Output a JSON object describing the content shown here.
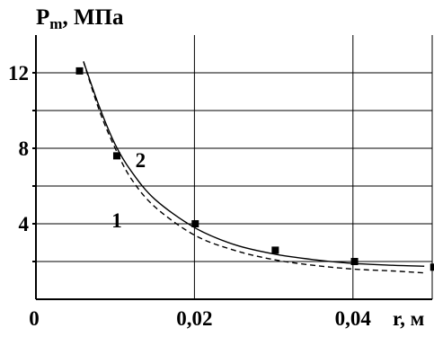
{
  "chart_data": {
    "type": "line",
    "title": "",
    "ylabel": {
      "main": "P",
      "sub": "m",
      "unit": ", МПа"
    },
    "xlabel": "r, м",
    "xlim": [
      0,
      0.05
    ],
    "ylim": [
      0,
      14
    ],
    "x_ticks": [
      {
        "value": 0,
        "label": "0"
      },
      {
        "value": 0.02,
        "label": "0,02"
      },
      {
        "value": 0.04,
        "label": "0,04"
      }
    ],
    "x_gridlines": [
      0.02,
      0.04
    ],
    "y_ticks": [
      {
        "value": 4,
        "label": "4"
      },
      {
        "value": 8,
        "label": "8"
      },
      {
        "value": 12,
        "label": "12"
      }
    ],
    "y_gridlines": [
      2,
      4,
      6,
      8,
      10,
      12
    ],
    "grid": true,
    "series": [
      {
        "name": "1",
        "style": "dashed",
        "color": "#000000",
        "x": [
          0.006,
          0.008,
          0.01,
          0.012,
          0.015,
          0.02,
          0.025,
          0.03,
          0.035,
          0.04,
          0.045,
          0.049
        ],
        "y": [
          12.6,
          10.0,
          8.0,
          6.4,
          4.9,
          3.4,
          2.6,
          2.1,
          1.8,
          1.6,
          1.5,
          1.4
        ]
      },
      {
        "name": "2",
        "style": "solid",
        "color": "#000000",
        "x": [
          0.006,
          0.008,
          0.01,
          0.012,
          0.015,
          0.02,
          0.025,
          0.03,
          0.035,
          0.04,
          0.045,
          0.049
        ],
        "y": [
          12.6,
          10.2,
          8.2,
          6.8,
          5.3,
          3.8,
          2.9,
          2.4,
          2.1,
          1.9,
          1.8,
          1.75
        ]
      }
    ],
    "markers": {
      "style": "square",
      "color": "#000000",
      "x": [
        0.0055,
        0.0102,
        0.0201,
        0.0302,
        0.0402,
        0.0502
      ],
      "y": [
        12.1,
        7.6,
        4.0,
        2.6,
        2.0,
        1.7
      ]
    },
    "annotations": [
      {
        "text": "1",
        "x": 0.0102,
        "y": 3.8
      },
      {
        "text": "2",
        "x": 0.0132,
        "y": 7.0
      }
    ]
  }
}
